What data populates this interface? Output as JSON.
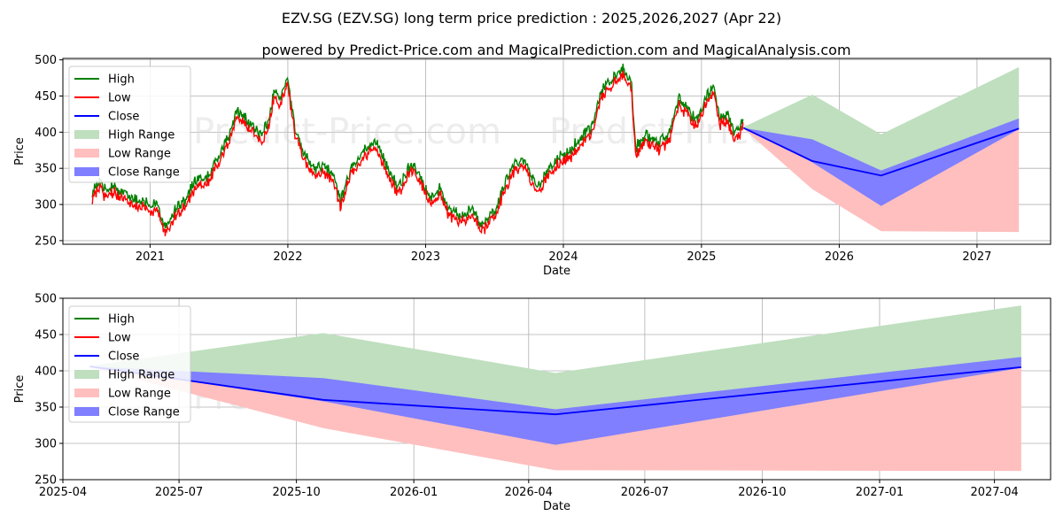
{
  "title": "EZV.SG (EZV.SG) long term price prediction : 2025,2026,2027 (Apr 22)",
  "subtitle": "powered by Predict-Price.com and MagicalPrediction.com and MagicalAnalysis.com",
  "watermark": "Predict-Price.com",
  "colors": {
    "high": "#008000",
    "low": "#ff0000",
    "close": "#0000ff",
    "high_range": "#bfdfbf",
    "low_range": "#ffbfbf",
    "close_range": "#7f7fff"
  },
  "legend": [
    "High",
    "Low",
    "Close",
    "High Range",
    "Low Range",
    "Close Range"
  ],
  "chart_data": [
    {
      "type": "line",
      "xlabel": "Date",
      "ylabel": "Price",
      "ylim": [
        245,
        502
      ],
      "xlim": [
        "2020-05-15",
        "2027-07-15"
      ],
      "yticks": [
        250,
        300,
        350,
        400,
        450,
        500
      ],
      "xticks": [
        "2021",
        "2022",
        "2023",
        "2024",
        "2025",
        "2026",
        "2027"
      ],
      "grid": true,
      "legend_position": "upper-left",
      "history_keypoints": [
        [
          "2020-08-01",
          312
        ],
        [
          "2020-08-20",
          330
        ],
        [
          "2020-09-05",
          315
        ],
        [
          "2020-09-25",
          322
        ],
        [
          "2020-10-20",
          310
        ],
        [
          "2020-11-20",
          305
        ],
        [
          "2020-12-20",
          298
        ],
        [
          "2021-01-20",
          293
        ],
        [
          "2021-02-10",
          262
        ],
        [
          "2021-03-10",
          290
        ],
        [
          "2021-04-10",
          305
        ],
        [
          "2021-05-01",
          330
        ],
        [
          "2021-06-01",
          335
        ],
        [
          "2021-07-01",
          360
        ],
        [
          "2021-08-01",
          395
        ],
        [
          "2021-08-20",
          425
        ],
        [
          "2021-09-20",
          410
        ],
        [
          "2021-10-20",
          390
        ],
        [
          "2021-11-10",
          410
        ],
        [
          "2021-11-25",
          450
        ],
        [
          "2021-12-15",
          445
        ],
        [
          "2021-12-31",
          470
        ],
        [
          "2022-01-20",
          400
        ],
        [
          "2022-02-15",
          365
        ],
        [
          "2022-03-10",
          345
        ],
        [
          "2022-04-10",
          348
        ],
        [
          "2022-05-01",
          335
        ],
        [
          "2022-05-20",
          300
        ],
        [
          "2022-06-20",
          350
        ],
        [
          "2022-07-20",
          370
        ],
        [
          "2022-08-20",
          385
        ],
        [
          "2022-09-20",
          350
        ],
        [
          "2022-10-20",
          318
        ],
        [
          "2022-11-10",
          340
        ],
        [
          "2022-12-01",
          355
        ],
        [
          "2022-12-31",
          320
        ],
        [
          "2023-01-20",
          305
        ],
        [
          "2023-02-10",
          320
        ],
        [
          "2023-03-01",
          290
        ],
        [
          "2023-04-01",
          280
        ],
        [
          "2023-05-01",
          290
        ],
        [
          "2023-06-01",
          268
        ],
        [
          "2023-07-01",
          285
        ],
        [
          "2023-07-20",
          310
        ],
        [
          "2023-08-20",
          350
        ],
        [
          "2023-09-20",
          355
        ],
        [
          "2023-10-20",
          320
        ],
        [
          "2023-11-20",
          340
        ],
        [
          "2023-12-20",
          362
        ],
        [
          "2024-01-20",
          370
        ],
        [
          "2024-02-20",
          390
        ],
        [
          "2024-03-20",
          405
        ],
        [
          "2024-04-10",
          450
        ],
        [
          "2024-05-10",
          470
        ],
        [
          "2024-06-10",
          485
        ],
        [
          "2024-06-30",
          460
        ],
        [
          "2024-07-10",
          375
        ],
        [
          "2024-08-10",
          390
        ],
        [
          "2024-09-10",
          380
        ],
        [
          "2024-10-10",
          395
        ],
        [
          "2024-11-01",
          445
        ],
        [
          "2024-11-20",
          430
        ],
        [
          "2024-12-20",
          410
        ],
        [
          "2025-01-10",
          440
        ],
        [
          "2025-02-01",
          460
        ],
        [
          "2025-02-20",
          415
        ],
        [
          "2025-03-10",
          420
        ],
        [
          "2025-04-01",
          392
        ],
        [
          "2025-04-22",
          410
        ]
      ],
      "forecast": {
        "dates": [
          "2025-04-22",
          "2025-10-22",
          "2026-04-22",
          "2027-04-22"
        ],
        "close": [
          406,
          360,
          340,
          405
        ],
        "high_range_upper": [
          407,
          452,
          397,
          490
        ],
        "low_range_lower": [
          405,
          321,
          263,
          262
        ],
        "close_range_upper": [
          406,
          390,
          347,
          419
        ],
        "close_range_lower": [
          406,
          358,
          298,
          404
        ]
      }
    },
    {
      "type": "line",
      "xlabel": "Date",
      "ylabel": "Price",
      "ylim": [
        250,
        500
      ],
      "xlim": [
        "2025-04-01",
        "2027-05-15"
      ],
      "yticks": [
        250,
        300,
        350,
        400,
        450,
        500
      ],
      "xticks": [
        "2025-04",
        "2025-07",
        "2025-10",
        "2026-01",
        "2026-04",
        "2026-07",
        "2026-10",
        "2027-01",
        "2027-04"
      ],
      "grid": true,
      "legend_position": "upper-left",
      "forecast": {
        "dates": [
          "2025-04-22",
          "2025-10-22",
          "2026-04-22",
          "2027-04-22"
        ],
        "close": [
          406,
          360,
          340,
          405
        ],
        "high_range_upper": [
          407,
          452,
          397,
          490
        ],
        "low_range_lower": [
          405,
          321,
          263,
          262
        ],
        "close_range_upper": [
          406,
          390,
          347,
          419
        ],
        "close_range_lower": [
          406,
          358,
          298,
          404
        ]
      }
    }
  ]
}
